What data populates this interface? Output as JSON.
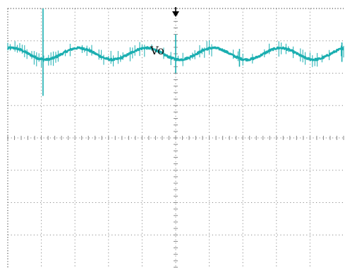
{
  "chart_data": {
    "type": "line",
    "title": "",
    "xlabel": "",
    "ylabel": "",
    "grid": true,
    "grid_divisions": {
      "x": 10,
      "y": 8
    },
    "xlim": [
      0,
      10
    ],
    "ylim": [
      -4,
      4
    ],
    "trigger_marker": "arrow-down-icon",
    "colors": {
      "trace": "#1aaeb0",
      "grid": "#8a8a8a",
      "frame": "#555555",
      "background": "#ffffff"
    },
    "series": [
      {
        "label": "Vo",
        "center_div": 2.6,
        "ripple_amplitude_div": 0.18,
        "ripple_cycles": 5,
        "spikes": [
          {
            "x": 1.05,
            "high": 4.0,
            "low": 1.3
          },
          {
            "x": 5.0,
            "high": 3.2,
            "low": 2.0
          },
          {
            "x": 6.9,
            "high": 2.75,
            "low": 2.2
          },
          {
            "x": 9.95,
            "high": 2.95,
            "low": 2.35
          }
        ]
      }
    ]
  }
}
